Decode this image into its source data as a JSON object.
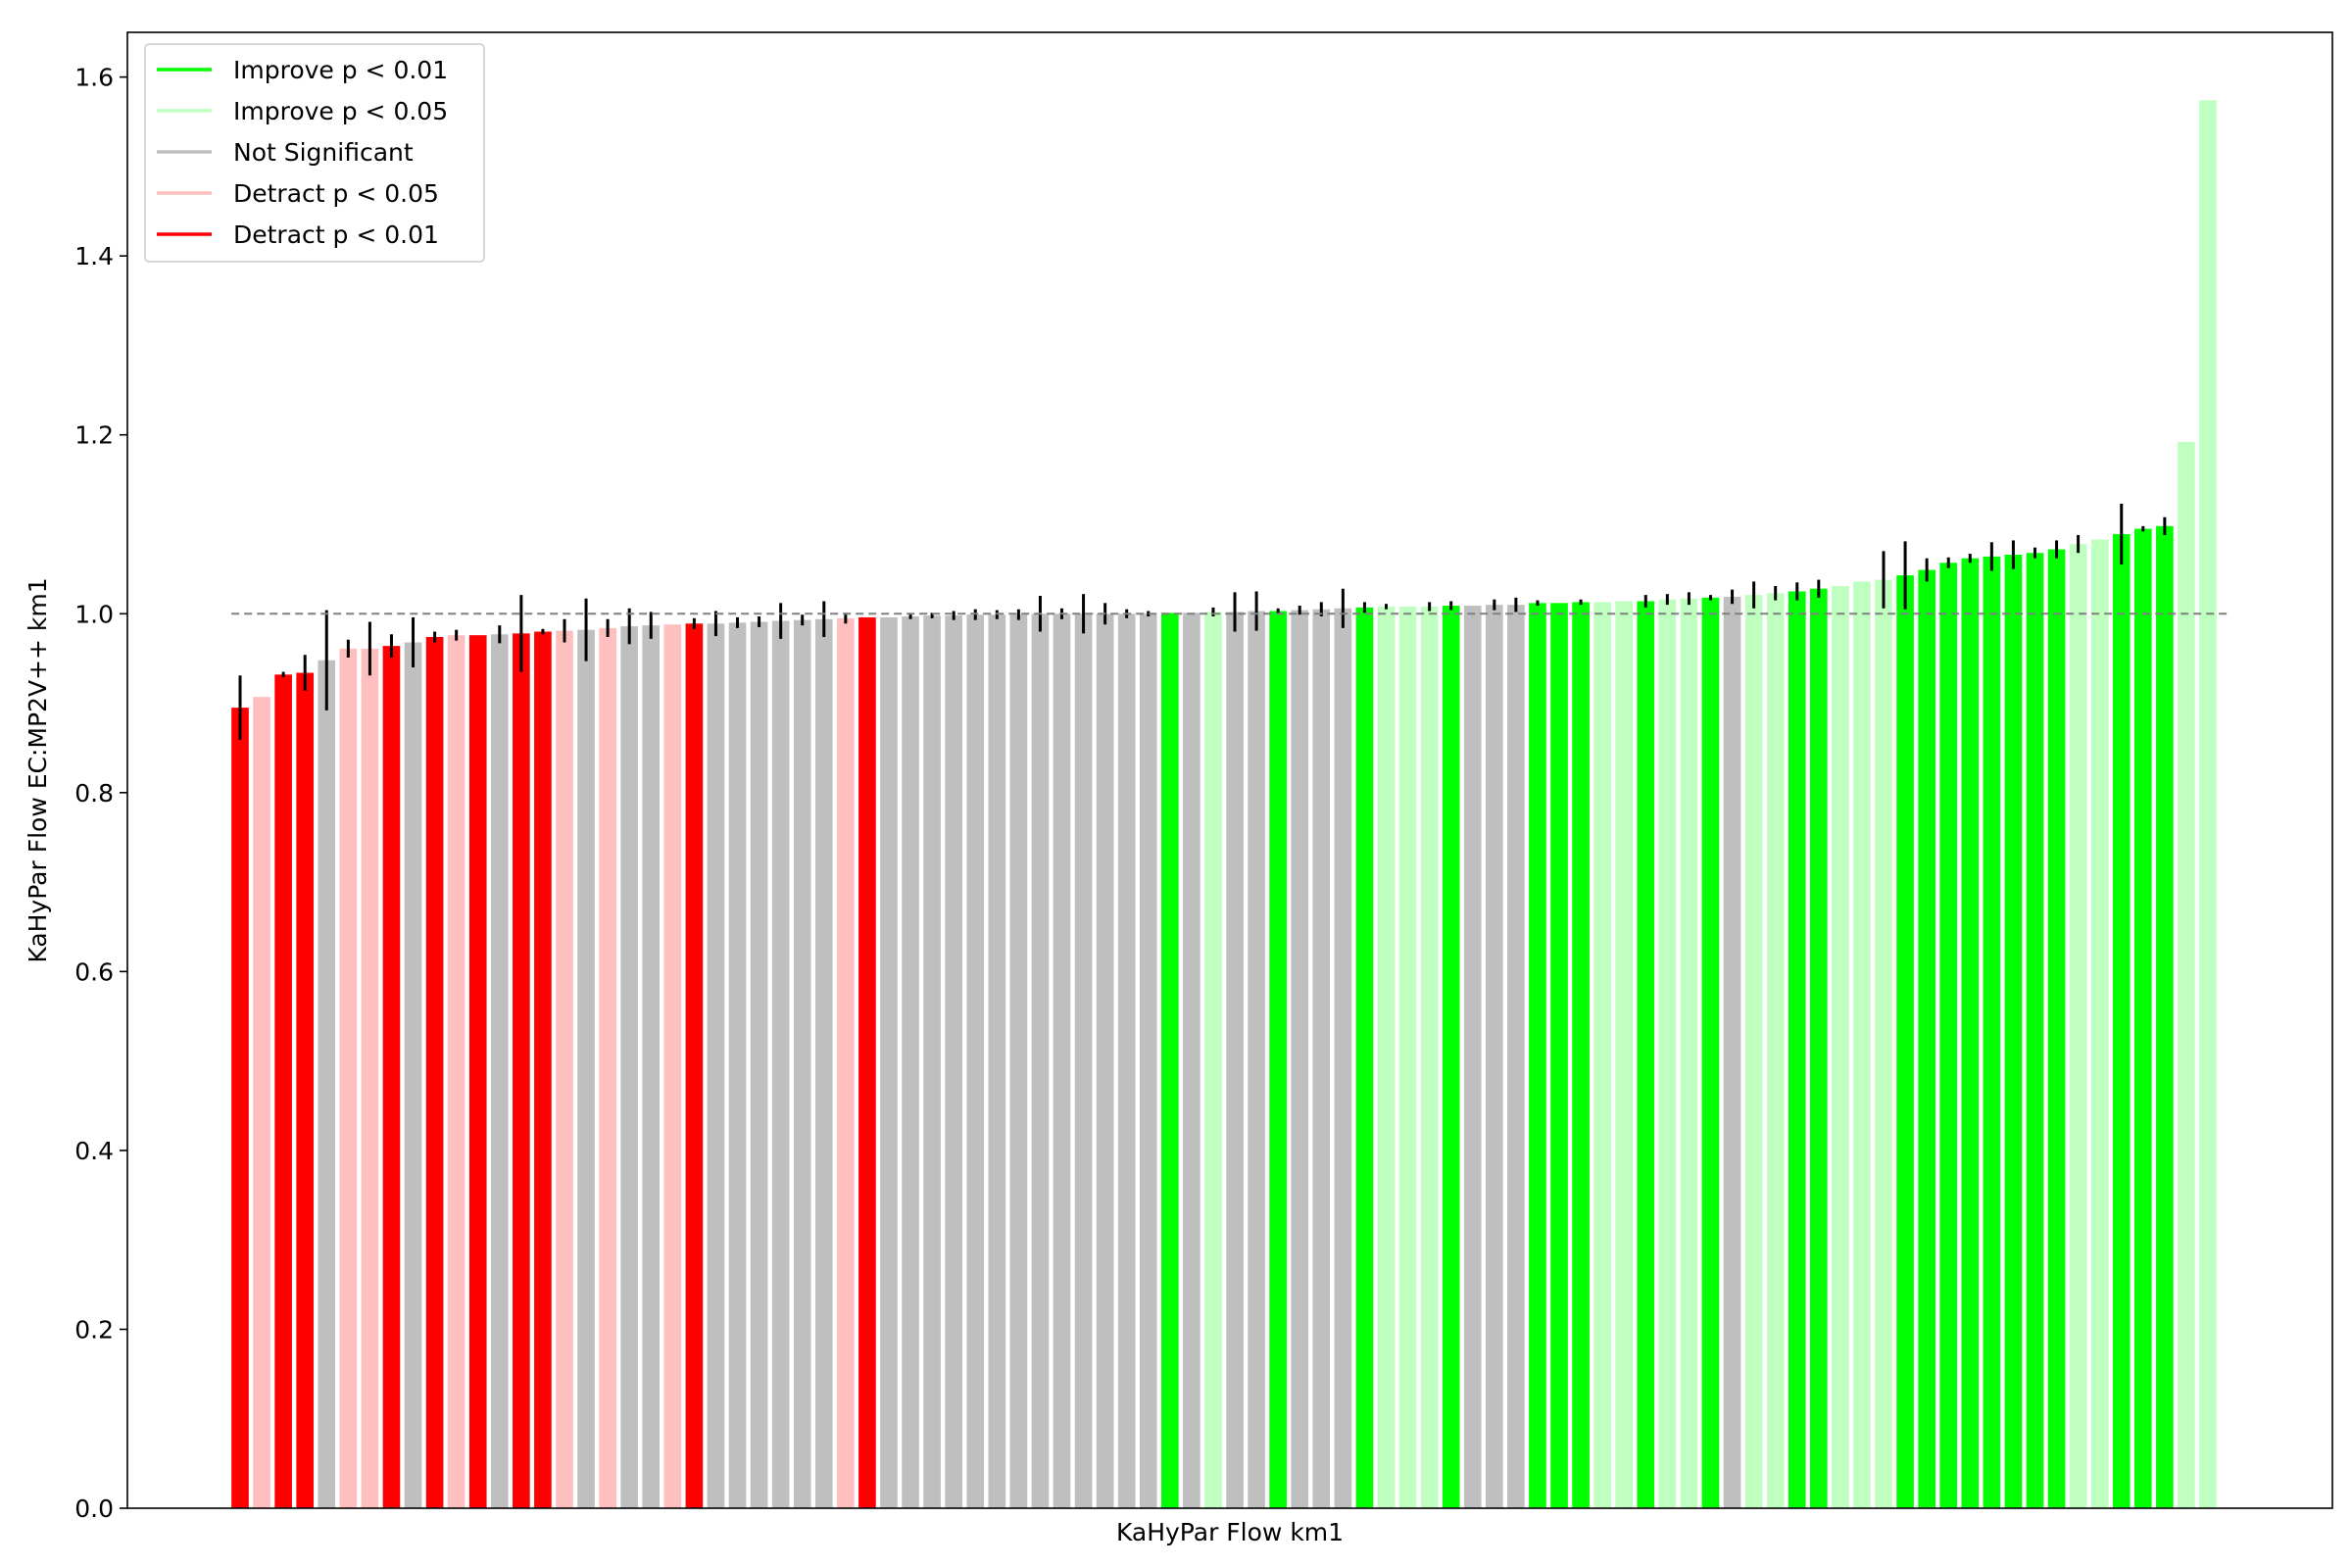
{
  "chart_data": {
    "type": "bar",
    "title": "",
    "xlabel": "KaHyPar Flow km1",
    "ylabel": "KaHyPar Flow EC:MP2V++ km1",
    "ylim": [
      0,
      1.65
    ],
    "yticks": [
      "0.0",
      "0.2",
      "0.4",
      "0.6",
      "0.8",
      "1.0",
      "1.2",
      "1.4",
      "1.6"
    ],
    "reference_line": 1.0,
    "grid": false,
    "legend_position": "top-left",
    "legend": [
      {
        "key": "improve01",
        "label": "Improve p < 0.01",
        "color": "#00ff00"
      },
      {
        "key": "improve05",
        "label": "Improve p < 0.05",
        "color": "#bfffbf"
      },
      {
        "key": "ns",
        "label": "Not Significant",
        "color": "#bfbfbf"
      },
      {
        "key": "detract05",
        "label": "Detract p < 0.05",
        "color": "#ffbfbf"
      },
      {
        "key": "detract01",
        "label": "Detract p < 0.01",
        "color": "#ff0000"
      }
    ],
    "values": [
      0.895,
      0.907,
      0.932,
      0.934,
      0.948,
      0.961,
      0.961,
      0.964,
      0.968,
      0.974,
      0.976,
      0.976,
      0.977,
      0.978,
      0.98,
      0.981,
      0.982,
      0.984,
      0.986,
      0.987,
      0.988,
      0.989,
      0.989,
      0.99,
      0.991,
      0.992,
      0.993,
      0.994,
      0.995,
      0.996,
      0.996,
      0.997,
      0.998,
      0.998,
      0.999,
      0.999,
      0.999,
      1.0,
      1.0,
      1.0,
      1.0,
      1.0,
      1.0,
      1.001,
      1.001,
      1.002,
      1.002,
      1.003,
      1.003,
      1.004,
      1.005,
      1.006,
      1.007,
      1.008,
      1.008,
      1.008,
      1.009,
      1.009,
      1.01,
      1.01,
      1.012,
      1.012,
      1.013,
      1.013,
      1.014,
      1.014,
      1.016,
      1.017,
      1.018,
      1.019,
      1.021,
      1.023,
      1.025,
      1.028,
      1.031,
      1.036,
      1.038,
      1.043,
      1.049,
      1.057,
      1.062,
      1.064,
      1.066,
      1.068,
      1.072,
      1.078,
      1.083,
      1.089,
      1.095,
      1.098,
      1.192,
      1.574
    ],
    "errors": [
      0.036,
      0,
      0.003,
      0.02,
      0.056,
      0.01,
      0.03,
      0.013,
      0.028,
      0.006,
      0.006,
      0,
      0.01,
      0.043,
      0.003,
      0.013,
      0.035,
      0.01,
      0.02,
      0.015,
      0,
      0.006,
      0.014,
      0.006,
      0.006,
      0.02,
      0.006,
      0.02,
      0.006,
      0,
      0,
      0.003,
      0.003,
      0.005,
      0.006,
      0.005,
      0.006,
      0.02,
      0.006,
      0.022,
      0.012,
      0.005,
      0.003,
      0,
      0,
      0.005,
      0.022,
      0.022,
      0.003,
      0.005,
      0.008,
      0.022,
      0.006,
      0.003,
      0,
      0.005,
      0.005,
      0,
      0.006,
      0.008,
      0.003,
      0,
      0.003,
      0,
      0,
      0.007,
      0.006,
      0.007,
      0.003,
      0.008,
      0.015,
      0.008,
      0.01,
      0.01,
      0,
      0,
      0.032,
      0.038,
      0.013,
      0.006,
      0.005,
      0.016,
      0.016,
      0.006,
      0.01,
      0.01,
      0,
      0.034,
      0.003,
      0.01,
      0,
      0
    ],
    "categories": [
      "detract01",
      "detract05",
      "detract01",
      "detract01",
      "ns",
      "detract05",
      "detract05",
      "detract01",
      "ns",
      "detract01",
      "detract05",
      "detract01",
      "ns",
      "detract01",
      "detract01",
      "detract05",
      "ns",
      "detract05",
      "ns",
      "ns",
      "detract05",
      "detract01",
      "ns",
      "ns",
      "ns",
      "ns",
      "ns",
      "ns",
      "detract05",
      "detract01",
      "ns",
      "ns",
      "ns",
      "ns",
      "ns",
      "ns",
      "ns",
      "ns",
      "ns",
      "ns",
      "ns",
      "ns",
      "ns",
      "improve01",
      "ns",
      "improve05",
      "ns",
      "ns",
      "improve01",
      "ns",
      "ns",
      "ns",
      "improve01",
      "improve05",
      "improve05",
      "improve05",
      "improve01",
      "ns",
      "ns",
      "ns",
      "improve01",
      "improve01",
      "improve01",
      "improve05",
      "improve05",
      "improve01",
      "improve05",
      "improve05",
      "improve01",
      "ns",
      "improve05",
      "improve05",
      "improve01",
      "improve01",
      "improve05",
      "improve05",
      "improve05",
      "improve01",
      "improve01",
      "improve01",
      "improve01",
      "improve01",
      "improve01",
      "improve01",
      "improve01",
      "improve05",
      "improve05",
      "improve01",
      "improve01",
      "improve01",
      "improve05",
      "improve05"
    ]
  }
}
